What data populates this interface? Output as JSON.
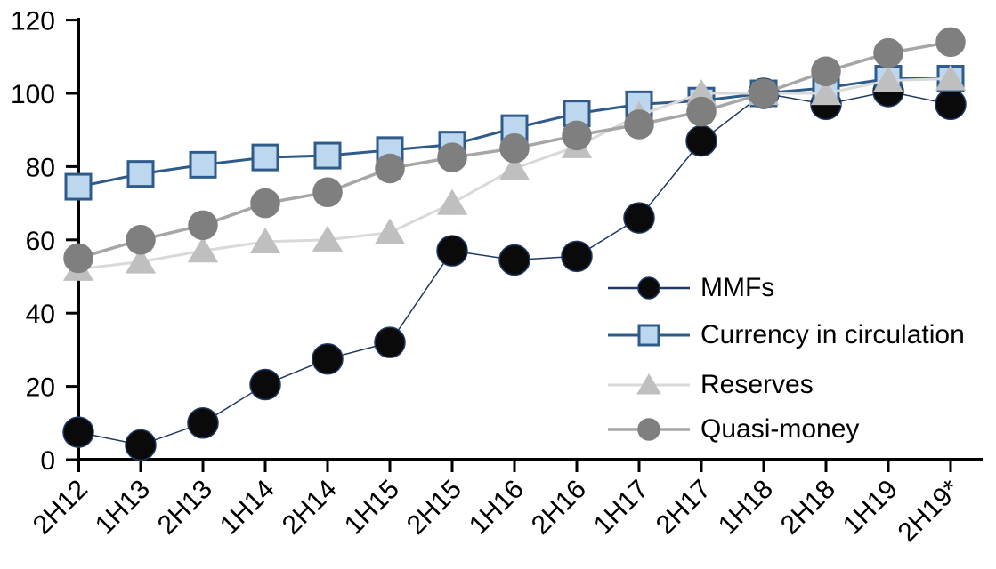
{
  "chart_data": {
    "type": "line",
    "title": "",
    "xlabel": "",
    "ylabel": "",
    "ylim": [
      0,
      120
    ],
    "yticks": [
      0,
      20,
      40,
      60,
      80,
      100,
      120
    ],
    "grid": false,
    "legend_position": "middle-right",
    "background_color": "#ffffff",
    "axis_color": "#000000",
    "categories": [
      "2H12",
      "1H13",
      "2H13",
      "1H14",
      "2H14",
      "1H15",
      "2H15",
      "1H16",
      "2H16",
      "1H17",
      "2H17",
      "1H18",
      "2H18",
      "1H19",
      "2H19*"
    ],
    "series": [
      {
        "name": "MMFs",
        "marker": "circle",
        "marker_size": 17,
        "marker_fill": "#0a0a0a",
        "marker_stroke": "#1f3864",
        "line_color": "#1f3864",
        "line_width": 1.5,
        "values": [
          7.5,
          4,
          10,
          20.5,
          27.5,
          32,
          57,
          54.5,
          55.5,
          66,
          87,
          100,
          97,
          100.5,
          97
        ]
      },
      {
        "name": "Currency in circulation",
        "marker": "square",
        "marker_size": 14,
        "marker_fill": "#bdd7ee",
        "marker_stroke": "#2e5b8c",
        "line_color": "#2e5b8c",
        "line_width": 3,
        "values": [
          74.5,
          78,
          80.5,
          82.5,
          83,
          84.5,
          86,
          90.5,
          94.5,
          97,
          98,
          100,
          101.5,
          104,
          104
        ]
      },
      {
        "name": "Reserves",
        "marker": "triangle",
        "marker_size": 16,
        "marker_fill": "#bfbfbf",
        "marker_stroke": "#bfbfbf",
        "line_color": "#d9d9d9",
        "line_width": 3,
        "values": [
          52,
          54,
          57,
          59.5,
          60,
          62,
          70,
          79.5,
          85.5,
          94,
          100,
          100,
          100,
          103.5,
          104
        ]
      },
      {
        "name": "Quasi-money",
        "marker": "circle",
        "marker_size": 16,
        "marker_fill": "#7f7f7f",
        "marker_stroke": "#7f7f7f",
        "line_color": "#a6a6a6",
        "line_width": 3.5,
        "values": [
          55,
          60,
          64,
          70,
          73,
          79.5,
          82.5,
          85,
          88.5,
          91.5,
          95,
          100,
          106,
          111,
          114
        ]
      }
    ]
  }
}
